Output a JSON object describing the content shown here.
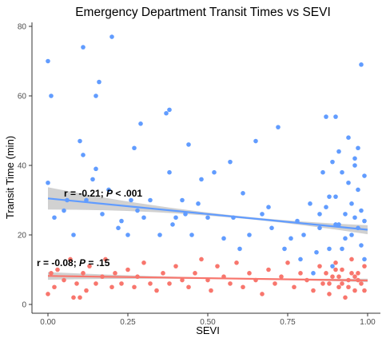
{
  "chart_data": {
    "type": "scatter",
    "title": "Emergency Department Transit Times vs SEVI",
    "xlabel": "SEVI",
    "ylabel": "Transit Time (min)",
    "xlim": [
      0,
      1
    ],
    "ylim": [
      0,
      80
    ],
    "x_ticks": [
      "0.00",
      "0.25",
      "0.50",
      "0.75",
      "1.00"
    ],
    "y_ticks": [
      "0",
      "20",
      "40",
      "60",
      "80"
    ],
    "grid": false,
    "legend": "none",
    "series": [
      {
        "color": "#619cff",
        "points": [
          [
            0.0,
            70
          ],
          [
            0.01,
            60
          ],
          [
            0.0,
            35
          ],
          [
            0.02,
            25
          ],
          [
            0.05,
            27
          ],
          [
            0.06,
            30
          ],
          [
            0.08,
            20
          ],
          [
            0.1,
            47
          ],
          [
            0.11,
            74
          ],
          [
            0.11,
            43
          ],
          [
            0.12,
            30
          ],
          [
            0.14,
            36
          ],
          [
            0.15,
            60
          ],
          [
            0.15,
            39
          ],
          [
            0.16,
            64
          ],
          [
            0.17,
            26
          ],
          [
            0.19,
            33
          ],
          [
            0.2,
            77
          ],
          [
            0.22,
            22
          ],
          [
            0.23,
            24
          ],
          [
            0.25,
            20
          ],
          [
            0.26,
            30
          ],
          [
            0.27,
            45
          ],
          [
            0.28,
            27
          ],
          [
            0.29,
            52
          ],
          [
            0.3,
            25
          ],
          [
            0.32,
            30
          ],
          [
            0.35,
            20
          ],
          [
            0.37,
            55
          ],
          [
            0.38,
            56
          ],
          [
            0.38,
            38
          ],
          [
            0.39,
            23
          ],
          [
            0.4,
            25
          ],
          [
            0.42,
            30
          ],
          [
            0.43,
            26
          ],
          [
            0.44,
            46
          ],
          [
            0.45,
            20
          ],
          [
            0.47,
            29
          ],
          [
            0.48,
            36
          ],
          [
            0.5,
            25
          ],
          [
            0.52,
            38
          ],
          [
            0.55,
            19
          ],
          [
            0.57,
            41
          ],
          [
            0.58,
            25
          ],
          [
            0.6,
            16
          ],
          [
            0.61,
            32
          ],
          [
            0.63,
            20
          ],
          [
            0.65,
            47
          ],
          [
            0.67,
            26
          ],
          [
            0.69,
            28
          ],
          [
            0.7,
            22
          ],
          [
            0.72,
            51
          ],
          [
            0.74,
            16
          ],
          [
            0.76,
            19
          ],
          [
            0.78,
            24
          ],
          [
            0.79,
            13
          ],
          [
            0.8,
            20
          ],
          [
            0.82,
            29
          ],
          [
            0.84,
            15
          ],
          [
            0.85,
            22
          ],
          [
            0.86,
            38
          ],
          [
            0.87,
            54
          ],
          [
            0.87,
            28
          ],
          [
            0.88,
            16
          ],
          [
            0.89,
            41
          ],
          [
            0.9,
            54
          ],
          [
            0.9,
            31
          ],
          [
            0.91,
            23
          ],
          [
            0.91,
            44
          ],
          [
            0.92,
            16
          ],
          [
            0.93,
            26
          ],
          [
            0.94,
            48
          ],
          [
            0.94,
            35
          ],
          [
            0.95,
            20
          ],
          [
            0.95,
            29
          ],
          [
            0.96,
            40
          ],
          [
            0.96,
            25
          ],
          [
            0.97,
            45
          ],
          [
            0.97,
            33
          ],
          [
            0.97,
            22
          ],
          [
            0.98,
            69
          ],
          [
            0.98,
            27
          ],
          [
            0.98,
            17
          ],
          [
            0.99,
            37
          ],
          [
            0.99,
            24
          ],
          [
            0.99,
            13
          ],
          [
            0.85,
            26
          ],
          [
            0.88,
            31
          ],
          [
            0.92,
            38
          ],
          [
            0.96,
            42
          ],
          [
            0.93,
            19
          ],
          [
            0.89,
            11
          ],
          [
            0.83,
            9
          ],
          [
            0.9,
            23
          ]
        ]
      },
      {
        "color": "#f8766d",
        "points": [
          [
            0.0,
            3
          ],
          [
            0.01,
            9
          ],
          [
            0.02,
            5
          ],
          [
            0.03,
            10
          ],
          [
            0.05,
            7
          ],
          [
            0.07,
            13
          ],
          [
            0.08,
            2
          ],
          [
            0.09,
            6
          ],
          [
            0.1,
            2
          ],
          [
            0.11,
            9
          ],
          [
            0.12,
            4
          ],
          [
            0.13,
            11
          ],
          [
            0.15,
            6
          ],
          [
            0.17,
            8
          ],
          [
            0.18,
            13
          ],
          [
            0.2,
            5
          ],
          [
            0.21,
            9
          ],
          [
            0.23,
            6
          ],
          [
            0.25,
            10
          ],
          [
            0.27,
            5
          ],
          [
            0.28,
            8
          ],
          [
            0.3,
            12
          ],
          [
            0.32,
            6
          ],
          [
            0.34,
            4
          ],
          [
            0.36,
            9
          ],
          [
            0.38,
            6
          ],
          [
            0.4,
            11
          ],
          [
            0.42,
            7
          ],
          [
            0.44,
            5
          ],
          [
            0.46,
            9
          ],
          [
            0.48,
            13
          ],
          [
            0.5,
            7
          ],
          [
            0.51,
            4
          ],
          [
            0.53,
            11
          ],
          [
            0.55,
            8
          ],
          [
            0.57,
            6
          ],
          [
            0.59,
            12
          ],
          [
            0.61,
            5
          ],
          [
            0.63,
            9
          ],
          [
            0.65,
            7
          ],
          [
            0.67,
            3
          ],
          [
            0.69,
            10
          ],
          [
            0.71,
            6
          ],
          [
            0.73,
            8
          ],
          [
            0.75,
            12
          ],
          [
            0.77,
            5
          ],
          [
            0.79,
            9
          ],
          [
            0.81,
            7
          ],
          [
            0.83,
            4
          ],
          [
            0.85,
            11
          ],
          [
            0.86,
            6
          ],
          [
            0.87,
            9
          ],
          [
            0.88,
            3
          ],
          [
            0.89,
            8
          ],
          [
            0.9,
            12
          ],
          [
            0.91,
            5
          ],
          [
            0.92,
            10
          ],
          [
            0.93,
            2
          ],
          [
            0.94,
            7
          ],
          [
            0.95,
            13
          ],
          [
            0.96,
            4
          ],
          [
            0.97,
            9
          ],
          [
            0.98,
            6
          ],
          [
            0.99,
            11
          ],
          [
            0.88,
            6
          ],
          [
            0.91,
            8
          ],
          [
            0.94,
            5
          ],
          [
            0.97,
            7
          ],
          [
            0.92,
            6
          ],
          [
            0.95,
            9
          ],
          [
            0.99,
            4
          ],
          [
            0.9,
            10
          ],
          [
            0.96,
            8
          ]
        ]
      }
    ],
    "trend_lines": [
      {
        "color": "#619cff",
        "x": [
          0.0,
          1.0
        ],
        "y": [
          30.5,
          21.5
        ],
        "ci_lower": [
          27.3,
          20.2
        ],
        "ci_upper": [
          33.7,
          22.8
        ],
        "ci_mid_halfwidth": 0.9,
        "label": "r = -0.21; P < .001"
      },
      {
        "color": "#f8766d",
        "x": [
          0.0,
          1.0
        ],
        "y": [
          8.2,
          6.9
        ],
        "ci_lower": [
          7.1,
          6.4
        ],
        "ci_upper": [
          9.3,
          7.4
        ],
        "ci_mid_halfwidth": 0.4,
        "label": "r = -0.08; P = .15"
      }
    ],
    "annotations": [
      {
        "prefix": "r = -0.21; ",
        "p": "P",
        "suffix": " < .001",
        "x": 0.05,
        "y": 31
      },
      {
        "prefix": "r = -0.08; ",
        "p": "P",
        "suffix": " = .15",
        "x": -0.035,
        "y": 11
      }
    ]
  }
}
